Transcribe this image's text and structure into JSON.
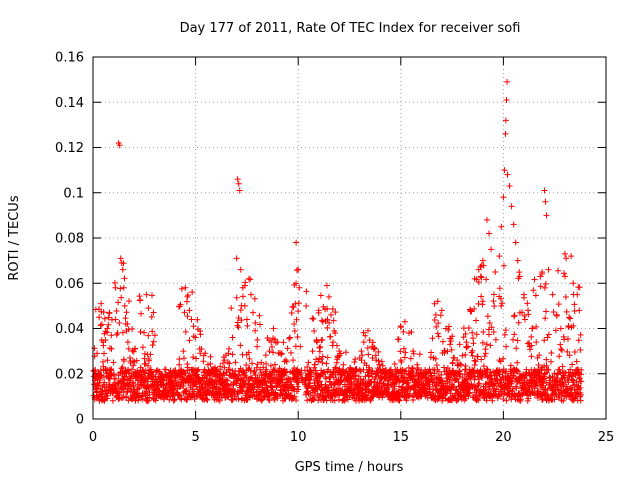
{
  "chart_data": {
    "type": "scatter",
    "title": "Day 177 of 2011, Rate Of TEC Index for receiver sofi",
    "xlabel": "GPS time / hours",
    "ylabel": "ROTI / TECUs",
    "xlim": [
      0,
      25
    ],
    "ylim": [
      0,
      0.16
    ],
    "x_ticks": [
      0,
      5,
      10,
      15,
      20,
      25
    ],
    "x_tick_labels": [
      "0",
      "5",
      "10",
      "15",
      "20",
      "25"
    ],
    "y_ticks": [
      0,
      0.02,
      0.04,
      0.06,
      0.08,
      0.1,
      0.12,
      0.14,
      0.16
    ],
    "y_tick_labels": [
      "0",
      "0.02",
      "0.04",
      "0.06",
      "0.08",
      "0.1",
      "0.12",
      "0.14",
      "0.16"
    ],
    "grid": true,
    "marker": "+",
    "color": "#ff0000",
    "series": [
      {
        "name": "ROTI",
        "points": [
          [
            0.1,
            0.018
          ],
          [
            0.2,
            0.029
          ],
          [
            0.3,
            0.045
          ],
          [
            0.4,
            0.051
          ],
          [
            0.5,
            0.034
          ],
          [
            0.6,
            0.022
          ],
          [
            0.7,
            0.04
          ],
          [
            0.8,
            0.047
          ],
          [
            0.9,
            0.031
          ],
          [
            1.0,
            0.025
          ],
          [
            1.1,
            0.044
          ],
          [
            1.2,
            0.038
          ],
          [
            1.25,
            0.122
          ],
          [
            1.3,
            0.121
          ],
          [
            1.35,
            0.071
          ],
          [
            1.4,
            0.069
          ],
          [
            1.45,
            0.066
          ],
          [
            1.5,
            0.058
          ],
          [
            1.55,
            0.05
          ],
          [
            1.6,
            0.042
          ],
          [
            1.7,
            0.034
          ],
          [
            1.8,
            0.027
          ],
          [
            1.9,
            0.022
          ],
          [
            2.0,
            0.019
          ],
          [
            2.2,
            0.017
          ],
          [
            2.4,
            0.018
          ],
          [
            2.6,
            0.055
          ],
          [
            2.7,
            0.049
          ],
          [
            2.8,
            0.021
          ],
          [
            3.0,
            0.016
          ],
          [
            3.2,
            0.015
          ],
          [
            3.4,
            0.017
          ],
          [
            3.6,
            0.014
          ],
          [
            3.8,
            0.016
          ],
          [
            4.0,
            0.018
          ],
          [
            4.2,
            0.024
          ],
          [
            4.4,
            0.03
          ],
          [
            4.5,
            0.058
          ],
          [
            4.6,
            0.054
          ],
          [
            4.7,
            0.048
          ],
          [
            4.8,
            0.044
          ],
          [
            4.9,
            0.041
          ],
          [
            5.0,
            0.036
          ],
          [
            5.2,
            0.031
          ],
          [
            5.4,
            0.028
          ],
          [
            5.6,
            0.024
          ],
          [
            5.8,
            0.022
          ],
          [
            6.0,
            0.02
          ],
          [
            6.2,
            0.022
          ],
          [
            6.4,
            0.026
          ],
          [
            6.6,
            0.029
          ],
          [
            6.8,
            0.036
          ],
          [
            7.0,
            0.071
          ],
          [
            7.05,
            0.106
          ],
          [
            7.1,
            0.104
          ],
          [
            7.15,
            0.101
          ],
          [
            7.2,
            0.066
          ],
          [
            7.3,
            0.058
          ],
          [
            7.4,
            0.05
          ],
          [
            7.5,
            0.044
          ],
          [
            7.6,
            0.062
          ],
          [
            7.7,
            0.055
          ],
          [
            7.8,
            0.047
          ],
          [
            7.9,
            0.039
          ],
          [
            8.0,
            0.032
          ],
          [
            8.2,
            0.025
          ],
          [
            8.4,
            0.021
          ],
          [
            8.6,
            0.03
          ],
          [
            8.8,
            0.04
          ],
          [
            9.0,
            0.034
          ],
          [
            9.2,
            0.029
          ],
          [
            9.4,
            0.026
          ],
          [
            9.6,
            0.036
          ],
          [
            9.8,
            0.042
          ],
          [
            9.9,
            0.078
          ],
          [
            10.0,
            0.066
          ],
          [
            10.05,
            0.058
          ],
          [
            10.1,
            0.032
          ],
          [
            10.2,
            0.018
          ],
          [
            10.3,
            0.016
          ],
          [
            10.5,
            0.025
          ],
          [
            10.7,
            0.03
          ],
          [
            10.9,
            0.035
          ],
          [
            11.0,
            0.048
          ],
          [
            11.2,
            0.043
          ],
          [
            11.4,
            0.059
          ],
          [
            11.5,
            0.054
          ],
          [
            11.6,
            0.046
          ],
          [
            11.8,
            0.038
          ],
          [
            12.0,
            0.03
          ],
          [
            12.2,
            0.024
          ],
          [
            12.4,
            0.02
          ],
          [
            12.6,
            0.018
          ],
          [
            12.8,
            0.022
          ],
          [
            13.0,
            0.027
          ],
          [
            13.2,
            0.034
          ],
          [
            13.4,
            0.039
          ],
          [
            13.6,
            0.032
          ],
          [
            13.8,
            0.026
          ],
          [
            14.0,
            0.022
          ],
          [
            14.2,
            0.019
          ],
          [
            14.4,
            0.017
          ],
          [
            14.6,
            0.016
          ],
          [
            14.8,
            0.02
          ],
          [
            15.0,
            0.026
          ],
          [
            15.2,
            0.043
          ],
          [
            15.4,
            0.038
          ],
          [
            15.6,
            0.03
          ],
          [
            15.8,
            0.024
          ],
          [
            16.0,
            0.02
          ],
          [
            16.2,
            0.018
          ],
          [
            16.4,
            0.022
          ],
          [
            16.6,
            0.027
          ],
          [
            16.8,
            0.052
          ],
          [
            17.0,
            0.048
          ],
          [
            17.2,
            0.04
          ],
          [
            17.4,
            0.033
          ],
          [
            17.6,
            0.027
          ],
          [
            17.8,
            0.024
          ],
          [
            18.0,
            0.028
          ],
          [
            18.2,
            0.034
          ],
          [
            18.4,
            0.048
          ],
          [
            18.6,
            0.062
          ],
          [
            18.8,
            0.066
          ],
          [
            19.0,
            0.07
          ],
          [
            19.2,
            0.088
          ],
          [
            19.3,
            0.082
          ],
          [
            19.4,
            0.075
          ],
          [
            19.6,
            0.065
          ],
          [
            19.8,
            0.072
          ],
          [
            19.9,
            0.085
          ],
          [
            20.0,
            0.098
          ],
          [
            20.05,
            0.11
          ],
          [
            20.1,
            0.126
          ],
          [
            20.12,
            0.132
          ],
          [
            20.15,
            0.141
          ],
          [
            20.18,
            0.149
          ],
          [
            20.2,
            0.108
          ],
          [
            20.3,
            0.103
          ],
          [
            20.4,
            0.094
          ],
          [
            20.5,
            0.086
          ],
          [
            20.6,
            0.078
          ],
          [
            20.7,
            0.07
          ],
          [
            20.8,
            0.063
          ],
          [
            21.0,
            0.055
          ],
          [
            21.2,
            0.048
          ],
          [
            21.4,
            0.04
          ],
          [
            21.6,
            0.034
          ],
          [
            21.8,
            0.063
          ],
          [
            22.0,
            0.101
          ],
          [
            22.05,
            0.096
          ],
          [
            22.1,
            0.09
          ],
          [
            22.2,
            0.066
          ],
          [
            22.4,
            0.055
          ],
          [
            22.6,
            0.046
          ],
          [
            22.8,
            0.04
          ],
          [
            23.0,
            0.073
          ],
          [
            23.2,
            0.045
          ],
          [
            23.4,
            0.06
          ],
          [
            23.6,
            0.055
          ],
          [
            23.7,
            0.048
          ]
        ],
        "baseline_density_note": "Dense cluster of markers between roughly 0.008 and 0.03 ROTI across hours 0 to 23.8"
      }
    ]
  }
}
